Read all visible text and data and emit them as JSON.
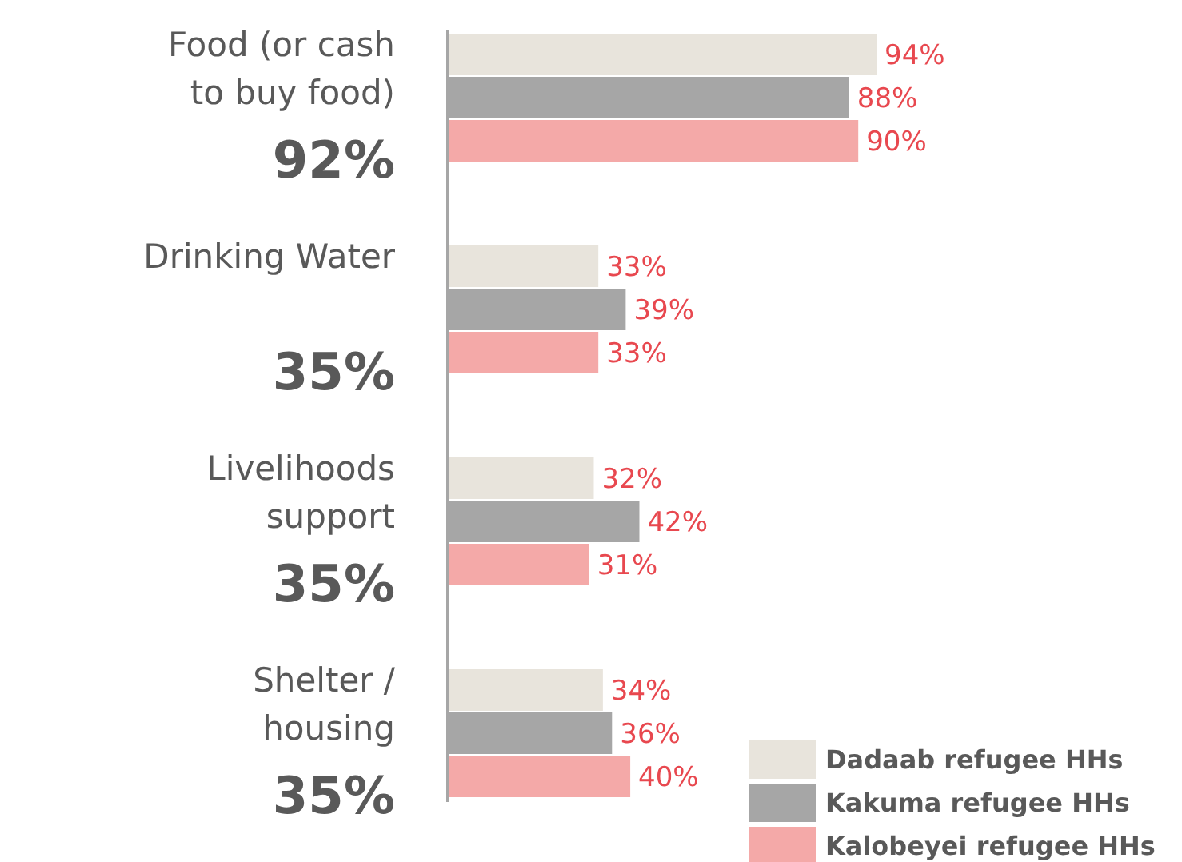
{
  "chart_data": {
    "type": "bar",
    "orientation": "horizontal",
    "categories": [
      "Food (or cash to buy food)",
      "Drinking Water",
      "Livelihoods support",
      "Shelter / housing"
    ],
    "series": [
      {
        "name": "Dadaab refugee HHs",
        "color": "#e8e4dc",
        "values": [
          94,
          33,
          32,
          34
        ],
        "value_labels": [
          "94%",
          "33%",
          "32%",
          "34%"
        ]
      },
      {
        "name": "Kakuma refugee HHs",
        "color": "#a6a6a6",
        "values": [
          88,
          39,
          42,
          36
        ],
        "value_labels": [
          "88%",
          "39%",
          "42%",
          "36%"
        ]
      },
      {
        "name": "Kalobeyei refugee HHs",
        "color": "#f4a9a8",
        "values": [
          90,
          33,
          31,
          40
        ],
        "value_labels": [
          "90%",
          "33%",
          "31%",
          "40%"
        ]
      }
    ],
    "annotations": [
      "92%",
      "35%",
      "35%",
      "35%"
    ],
    "legend": "bottom right"
  }
}
